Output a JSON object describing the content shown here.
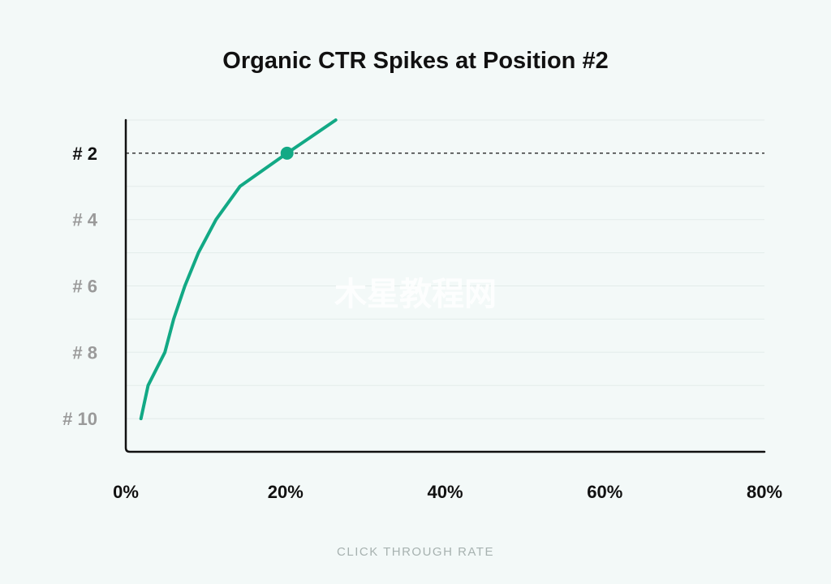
{
  "colors": {
    "background": "#f3f9f8",
    "line": "#12a985",
    "axis": "#111111",
    "grid": "#e3ecea",
    "muted_tick": "#9a9a9a"
  },
  "watermark": "木星教程网",
  "chart_data": {
    "type": "line",
    "title": "Organic CTR Spikes at Position #2",
    "xlabel": "CLICK THROUGH RATE",
    "ylabel": "",
    "xlim": [
      0,
      80
    ],
    "ylim": [
      11,
      1
    ],
    "x_ticks": [
      "0%",
      "20%",
      "40%",
      "60%",
      "80%"
    ],
    "x_tick_values": [
      0,
      20,
      40,
      60,
      80
    ],
    "y_ticks": [
      "# 2",
      "# 4",
      "# 6",
      "# 8",
      "# 10"
    ],
    "y_tick_values": [
      2,
      4,
      6,
      8,
      10
    ],
    "highlight_position": 2,
    "grid": true,
    "series": [
      {
        "points": [
          {
            "x": 1.9,
            "y": 10
          },
          {
            "x": 2.8,
            "y": 9
          },
          {
            "x": 4.9,
            "y": 8
          },
          {
            "x": 6.0,
            "y": 7
          },
          {
            "x": 7.4,
            "y": 6
          },
          {
            "x": 9.1,
            "y": 5
          },
          {
            "x": 11.3,
            "y": 4
          },
          {
            "x": 14.3,
            "y": 3
          },
          {
            "x": 20.2,
            "y": 2
          },
          {
            "x": 26.3,
            "y": 1
          }
        ]
      }
    ]
  }
}
